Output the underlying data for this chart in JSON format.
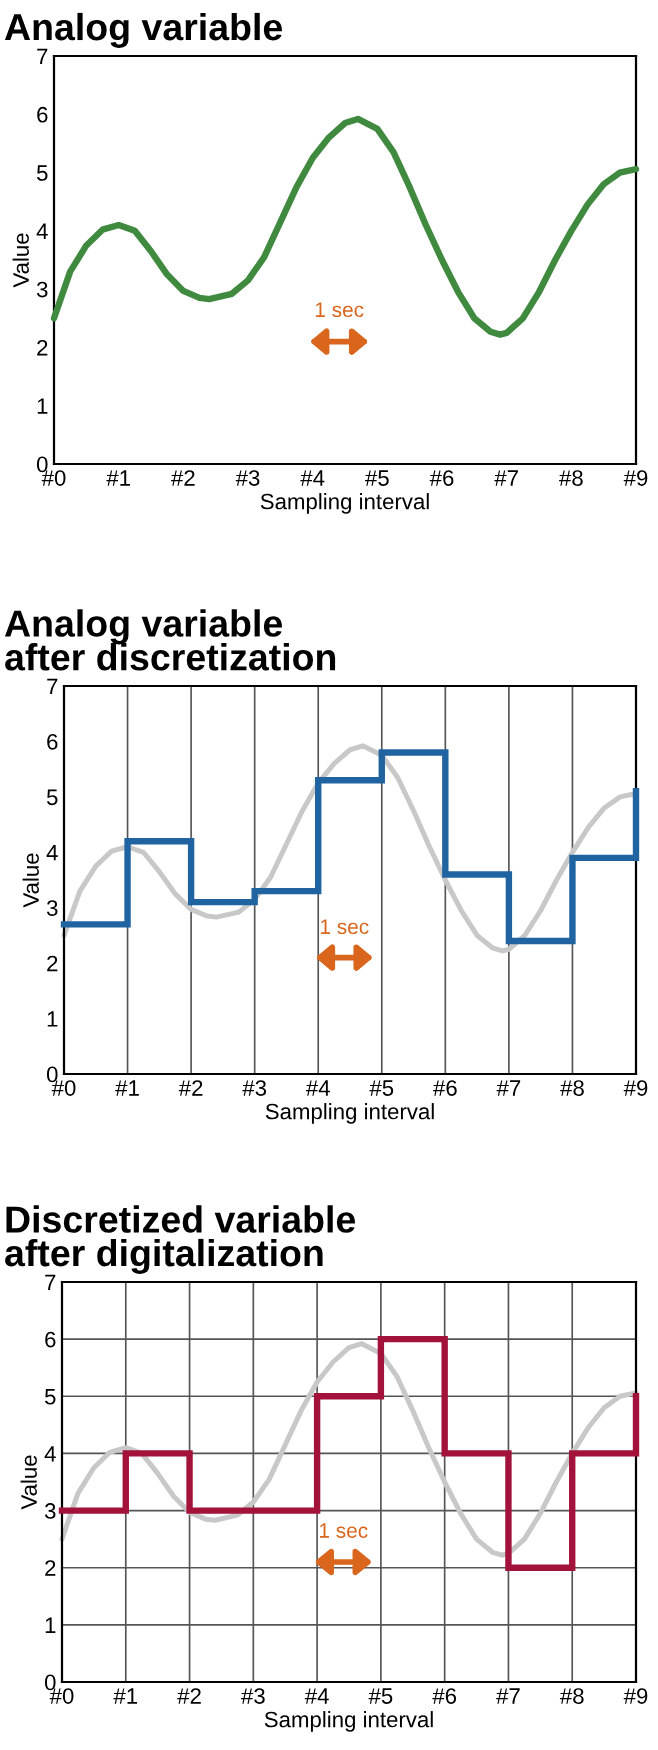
{
  "chart_data": [
    {
      "type": "line",
      "title": "Analog variable",
      "xlabel": "Sampling interval",
      "ylabel": "Value",
      "xlim": [
        0,
        9
      ],
      "ylim": [
        0,
        7
      ],
      "yticks": [
        0,
        1,
        2,
        3,
        4,
        5,
        6,
        7
      ],
      "xticks": [
        {
          "value": 0,
          "label": "#0"
        },
        {
          "value": 1,
          "label": "#1"
        },
        {
          "value": 2,
          "label": "#2"
        },
        {
          "value": 3,
          "label": "#3"
        },
        {
          "value": 4,
          "label": "#4"
        },
        {
          "value": 5,
          "label": "#5"
        },
        {
          "value": 6,
          "label": "#6"
        },
        {
          "value": 7,
          "label": "#7"
        },
        {
          "value": 8,
          "label": "#8"
        },
        {
          "value": 9,
          "label": "#9"
        }
      ],
      "grid": false,
      "marker": "none",
      "annotations": [
        "1 sec"
      ],
      "series": [
        {
          "color": "#3f8a3f",
          "x": [
            0,
            0.25,
            0.5,
            0.75,
            1.0,
            1.25,
            1.5,
            1.75,
            2.0,
            2.25,
            2.4,
            2.75,
            3.0,
            3.25,
            3.5,
            3.75,
            4.0,
            4.25,
            4.5,
            4.7,
            5.0,
            5.25,
            5.5,
            5.75,
            6.0,
            6.25,
            6.5,
            6.75,
            6.9,
            7.0,
            7.25,
            7.5,
            7.75,
            8.0,
            8.25,
            8.5,
            8.75,
            9.0
          ],
          "values": [
            2.5,
            3.3,
            3.75,
            4.02,
            4.1,
            4.0,
            3.65,
            3.25,
            2.97,
            2.85,
            2.83,
            2.92,
            3.15,
            3.55,
            4.15,
            4.75,
            5.25,
            5.6,
            5.85,
            5.92,
            5.75,
            5.35,
            4.75,
            4.1,
            3.5,
            2.95,
            2.5,
            2.27,
            2.22,
            2.25,
            2.5,
            2.95,
            3.5,
            4.0,
            4.45,
            4.8,
            5.0,
            5.06
          ]
        }
      ]
    },
    {
      "type": "step",
      "title": "Analog variable\nafter discretization",
      "xlabel": "Sampling interval",
      "ylabel": "Value",
      "xlim": [
        0,
        9
      ],
      "ylim": [
        0,
        7
      ],
      "yticks": [
        0,
        1,
        2,
        3,
        4,
        5,
        6,
        7
      ],
      "xticks": [
        {
          "value": 0,
          "label": "#0"
        },
        {
          "value": 1,
          "label": "#1"
        },
        {
          "value": 2,
          "label": "#2"
        },
        {
          "value": 3,
          "label": "#3"
        },
        {
          "value": 4,
          "label": "#4"
        },
        {
          "value": 5,
          "label": "#5"
        },
        {
          "value": 6,
          "label": "#6"
        },
        {
          "value": 7,
          "label": "#7"
        },
        {
          "value": 8,
          "label": "#8"
        },
        {
          "value": 9,
          "label": "#9"
        }
      ],
      "grid": "x",
      "marker": "none",
      "annotations": [
        "1 sec"
      ],
      "series": [
        {
          "type": "line",
          "color": "#c8c8c8",
          "x": [
            0,
            0.25,
            0.5,
            0.75,
            1.0,
            1.25,
            1.5,
            1.75,
            2.0,
            2.25,
            2.4,
            2.75,
            3.0,
            3.25,
            3.5,
            3.75,
            4.0,
            4.25,
            4.5,
            4.7,
            5.0,
            5.25,
            5.5,
            5.75,
            6.0,
            6.25,
            6.5,
            6.75,
            6.9,
            7.0,
            7.25,
            7.5,
            7.75,
            8.0,
            8.25,
            8.5,
            8.75,
            9.0
          ],
          "values": [
            2.5,
            3.3,
            3.75,
            4.02,
            4.1,
            4.0,
            3.65,
            3.25,
            2.97,
            2.85,
            2.83,
            2.92,
            3.15,
            3.55,
            4.15,
            4.75,
            5.25,
            5.6,
            5.85,
            5.92,
            5.75,
            5.35,
            4.75,
            4.1,
            3.5,
            2.95,
            2.5,
            2.27,
            2.22,
            2.25,
            2.5,
            2.95,
            3.5,
            4.0,
            4.45,
            4.8,
            5.0,
            5.06
          ]
        },
        {
          "color": "#1f64a0",
          "x": [
            0,
            1,
            2,
            3,
            4,
            5,
            6,
            7,
            8,
            9
          ],
          "values": [
            2.7,
            4.2,
            3.1,
            3.3,
            5.3,
            5.8,
            3.6,
            2.4,
            3.9,
            5.1
          ]
        }
      ]
    },
    {
      "type": "step",
      "title": "Discretized variable\nafter digitalization",
      "xlabel": "Sampling interval",
      "ylabel": "Value",
      "xlim": [
        0,
        9
      ],
      "ylim": [
        0,
        7
      ],
      "yticks": [
        0,
        1,
        2,
        3,
        4,
        5,
        6,
        7
      ],
      "xticks": [
        {
          "value": 0,
          "label": "#0"
        },
        {
          "value": 1,
          "label": "#1"
        },
        {
          "value": 2,
          "label": "#2"
        },
        {
          "value": 3,
          "label": "#3"
        },
        {
          "value": 4,
          "label": "#4"
        },
        {
          "value": 5,
          "label": "#5"
        },
        {
          "value": 6,
          "label": "#6"
        },
        {
          "value": 7,
          "label": "#7"
        },
        {
          "value": 8,
          "label": "#8"
        },
        {
          "value": 9,
          "label": "#9"
        }
      ],
      "grid": true,
      "marker": "none",
      "annotations": [
        "1 sec"
      ],
      "series": [
        {
          "type": "line",
          "color": "#c8c8c8",
          "x": [
            0,
            0.25,
            0.5,
            0.75,
            1.0,
            1.25,
            1.5,
            1.75,
            2.0,
            2.25,
            2.4,
            2.75,
            3.0,
            3.25,
            3.5,
            3.75,
            4.0,
            4.25,
            4.5,
            4.7,
            5.0,
            5.25,
            5.5,
            5.75,
            6.0,
            6.25,
            6.5,
            6.75,
            6.9,
            7.0,
            7.25,
            7.5,
            7.75,
            8.0,
            8.25,
            8.5,
            8.75,
            9.0
          ],
          "values": [
            2.5,
            3.3,
            3.75,
            4.02,
            4.1,
            4.0,
            3.65,
            3.25,
            2.97,
            2.85,
            2.83,
            2.92,
            3.15,
            3.55,
            4.15,
            4.75,
            5.25,
            5.6,
            5.85,
            5.92,
            5.75,
            5.35,
            4.75,
            4.1,
            3.5,
            2.95,
            2.5,
            2.27,
            2.22,
            2.25,
            2.5,
            2.95,
            3.5,
            4.0,
            4.45,
            4.8,
            5.0,
            5.06
          ]
        },
        {
          "color": "#a3123a",
          "x": [
            0,
            1,
            2,
            3,
            4,
            5,
            6,
            7,
            8,
            9
          ],
          "values": [
            3,
            4,
            3,
            3,
            5,
            6,
            4,
            2,
            4,
            5
          ]
        }
      ]
    }
  ]
}
